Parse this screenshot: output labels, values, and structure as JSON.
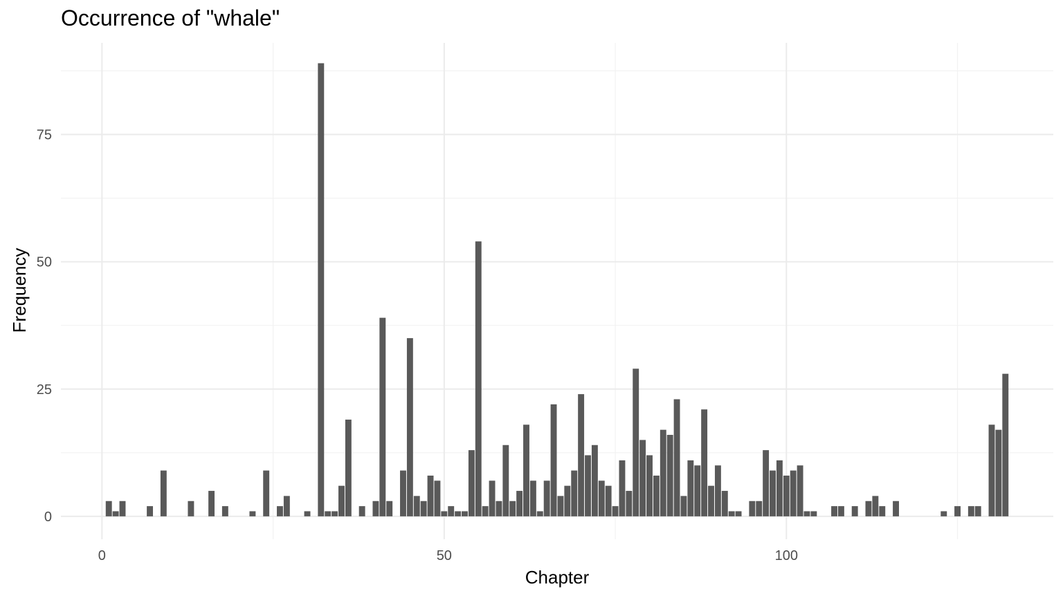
{
  "chart_data": {
    "type": "bar",
    "title": "Occurrence of \"whale\"",
    "xlabel": "Chapter",
    "ylabel": "Frequency",
    "xlim": [
      -6,
      139
    ],
    "ylim": [
      -4.5,
      93
    ],
    "x_ticks": [
      0,
      50,
      100
    ],
    "x_tick_labels": [
      "0",
      "50",
      "100"
    ],
    "x_minor_ticks": [
      25,
      75,
      125
    ],
    "y_ticks": [
      0,
      25,
      50,
      75
    ],
    "y_tick_labels": [
      "0",
      "25",
      "50",
      "75"
    ],
    "y_minor_ticks": [
      12.5,
      37.5,
      62.5,
      87.5
    ],
    "grid": true,
    "legend": "none",
    "bar_color": "#595959",
    "grid_major_color": "#ebebeb",
    "grid_minor_color": "#f2f2f2",
    "x": [
      1,
      2,
      3,
      7,
      9,
      13,
      16,
      18,
      22,
      24,
      26,
      27,
      30,
      32,
      33,
      34,
      35,
      36,
      38,
      40,
      41,
      42,
      44,
      45,
      46,
      47,
      48,
      49,
      50,
      51,
      52,
      53,
      54,
      55,
      56,
      57,
      58,
      59,
      60,
      61,
      62,
      63,
      64,
      65,
      66,
      67,
      68,
      69,
      70,
      71,
      72,
      73,
      74,
      75,
      76,
      77,
      78,
      79,
      80,
      81,
      82,
      83,
      84,
      85,
      86,
      87,
      88,
      89,
      90,
      91,
      92,
      93,
      95,
      96,
      97,
      98,
      99,
      100,
      101,
      102,
      103,
      104,
      107,
      108,
      110,
      112,
      113,
      114,
      116,
      123,
      125,
      127,
      128,
      130,
      131,
      132
    ],
    "values": [
      3,
      1,
      3,
      2,
      9,
      3,
      5,
      2,
      1,
      9,
      2,
      4,
      1,
      89,
      1,
      1,
      6,
      19,
      2,
      3,
      39,
      3,
      9,
      35,
      4,
      3,
      8,
      7,
      1,
      2,
      1,
      1,
      13,
      54,
      2,
      7,
      3,
      14,
      3,
      5,
      18,
      7,
      1,
      7,
      22,
      4,
      6,
      9,
      24,
      12,
      14,
      7,
      6,
      2,
      11,
      5,
      29,
      15,
      12,
      8,
      17,
      16,
      23,
      4,
      11,
      10,
      21,
      6,
      10,
      5,
      1,
      1,
      3,
      3,
      13,
      9,
      11,
      8,
      9,
      10,
      1,
      1,
      2,
      2,
      2,
      3,
      4,
      2,
      3,
      1,
      2,
      2,
      2,
      18,
      17,
      28
    ]
  }
}
